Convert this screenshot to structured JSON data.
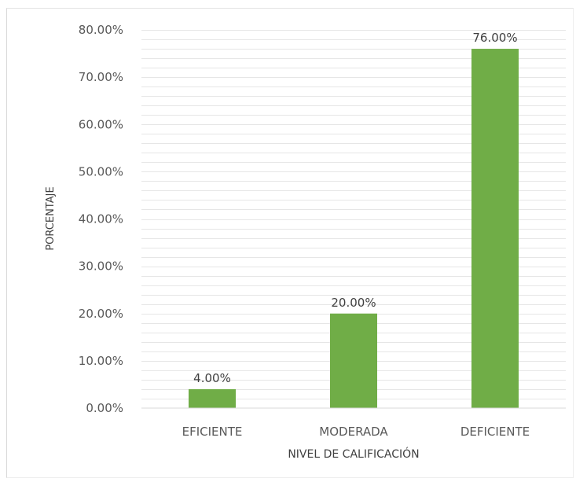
{
  "chart_data": {
    "type": "bar",
    "categories": [
      "EFICIENTE",
      "MODERADA",
      "DEFICIENTE"
    ],
    "values": [
      4.0,
      20.0,
      76.0
    ],
    "data_labels": [
      "4.00%",
      "20.00%",
      "76.00%"
    ],
    "title": "",
    "xlabel": "NIVEL DE CALIFICACIÓN",
    "ylabel": "PORCENTAJE",
    "ylim": [
      0,
      80
    ],
    "yticks": [
      {
        "value": 0,
        "label": "0.00%"
      },
      {
        "value": 10,
        "label": "10.00%"
      },
      {
        "value": 20,
        "label": "20.00%"
      },
      {
        "value": 30,
        "label": "30.00%"
      },
      {
        "value": 40,
        "label": "40.00%"
      },
      {
        "value": 50,
        "label": "50.00%"
      },
      {
        "value": 60,
        "label": "60.00%"
      },
      {
        "value": 70,
        "label": "70.00%"
      },
      {
        "value": 80,
        "label": "80.00%"
      }
    ],
    "minor_grid_step": 2,
    "grid": true,
    "legend": "none",
    "bar_color": "#70ad47",
    "grid_color": "#e6e6e6",
    "axis_color": "#d9d9d9"
  }
}
